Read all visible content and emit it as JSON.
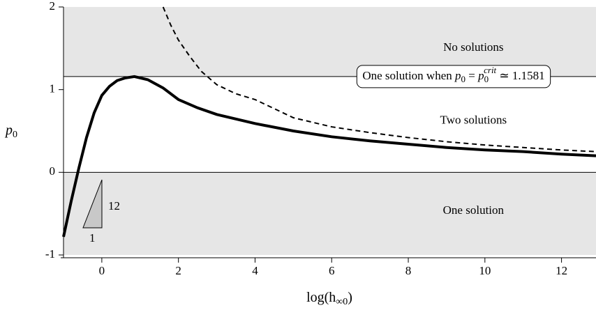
{
  "chart_data": {
    "type": "line",
    "xlim": [
      -1,
      12.9
    ],
    "ylim": [
      -1,
      2
    ],
    "xticks": [
      0,
      2,
      4,
      6,
      8,
      10,
      12
    ],
    "yticks": [
      -1,
      0,
      1,
      2
    ],
    "xlabel": {
      "text": "log(h",
      "sub": "∞0",
      "close": ")"
    },
    "ylabel": {
      "text": "p",
      "sub": "0"
    },
    "regions": {
      "upper": "No solutions",
      "middle": "Two solutions",
      "lower": "One solution"
    },
    "annotation": {
      "text": "One solution when ",
      "p": "p",
      "sub": "0",
      "eq": " = ",
      "p2": "p",
      "sub2": "0",
      "sup2": "crit",
      "approx": " ≃ ",
      "value": 1.1581
    },
    "slope": {
      "rise": "12",
      "run": "1"
    },
    "series": [
      {
        "style": "solid",
        "color": "#000000",
        "x": [
          -1,
          -0.8,
          -0.6,
          -0.4,
          -0.2,
          0,
          0.2,
          0.4,
          0.6,
          0.85,
          1.2,
          1.6,
          2,
          2.5,
          3,
          4,
          5,
          6,
          7,
          8,
          9,
          10,
          11,
          12,
          12.9
        ],
        "values": [
          -0.78,
          -0.35,
          0.05,
          0.42,
          0.72,
          0.93,
          1.04,
          1.11,
          1.14,
          1.158,
          1.12,
          1.02,
          0.88,
          0.78,
          0.7,
          0.59,
          0.5,
          0.43,
          0.38,
          0.34,
          0.3,
          0.27,
          0.25,
          0.22,
          0.2
        ]
      },
      {
        "style": "dashed",
        "color": "#000000",
        "x": [
          1.6,
          1.8,
          2,
          2.3,
          2.6,
          3,
          3.5,
          4,
          5,
          6,
          7,
          8,
          9,
          10,
          11,
          12,
          12.9
        ],
        "values": [
          2,
          1.78,
          1.6,
          1.4,
          1.22,
          1.06,
          0.95,
          0.88,
          0.66,
          0.55,
          0.48,
          0.42,
          0.37,
          0.33,
          0.3,
          0.27,
          0.25
        ]
      }
    ]
  }
}
